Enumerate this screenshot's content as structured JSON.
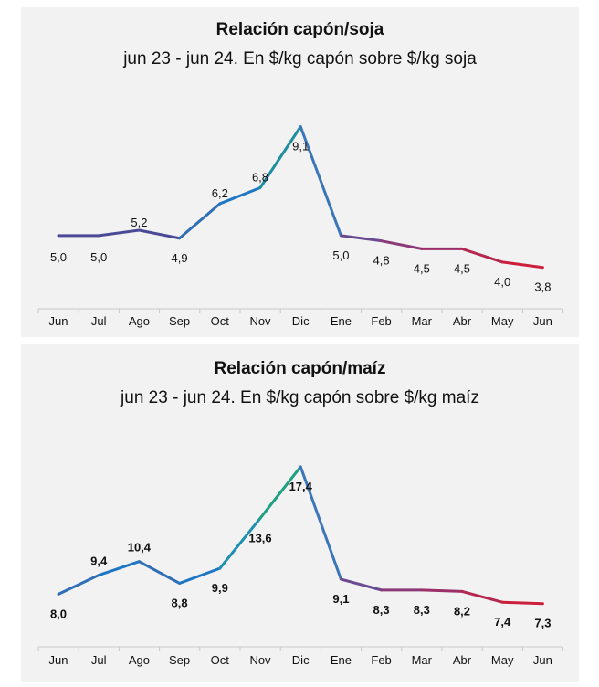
{
  "chart_data": [
    {
      "type": "line",
      "title": "Relación capón/soja",
      "subtitle": "jun 23 - jun 24. En $/kg capón sobre $/kg soja",
      "categories": [
        "Jun",
        "Jul",
        "Ago",
        "Sep",
        "Oct",
        "Nov",
        "Dic",
        "Ene",
        "Feb",
        "Mar",
        "Abr",
        "May",
        "Jun"
      ],
      "values": [
        5.0,
        5.0,
        5.2,
        4.9,
        6.2,
        6.8,
        9.1,
        5.0,
        4.8,
        4.5,
        4.5,
        4.0,
        3.8
      ],
      "data_labels": [
        "5,0",
        "5,0",
        "5,2",
        "4,9",
        "6,2",
        "6,8",
        "9,1",
        "5,0",
        "4,8",
        "4,5",
        "4,5",
        "4,0",
        "3,8"
      ],
      "ylim": [
        3.0,
        9.5
      ],
      "grid": false,
      "legend": "none",
      "colors": [
        "#4a4a96",
        "#4a4a96",
        "#4a4a96",
        "#4a4a96",
        "#2f6fb5",
        "#1f77c4",
        "#1f8fa0",
        "#3b76b8",
        "#6a4a92",
        "#8a3a7a",
        "#9a2f6a",
        "#b42850",
        "#cc1f3c"
      ]
    },
    {
      "type": "line",
      "title": "Relación capón/maíz",
      "subtitle": "jun 23 - jun 24. En $/kg capón sobre $/kg maíz",
      "categories": [
        "Jun",
        "Jul",
        "Ago",
        "Sep",
        "Oct",
        "Nov",
        "Dic",
        "Ene",
        "Feb",
        "Mar",
        "Abr",
        "May",
        "Jun"
      ],
      "values": [
        8.0,
        9.4,
        10.4,
        8.8,
        9.9,
        13.6,
        17.4,
        9.1,
        8.3,
        8.3,
        8.2,
        7.4,
        7.3
      ],
      "data_labels": [
        "8,0",
        "9,4",
        "10,4",
        "8,8",
        "9,9",
        "13,6",
        "17,4",
        "9,1",
        "8,3",
        "8,3",
        "8,2",
        "7,4",
        "7,3"
      ],
      "ylim": [
        6.0,
        18.0
      ],
      "grid": false,
      "legend": "none",
      "colors": [
        "#8a3a7a",
        "#2f6fb5",
        "#1f77c4",
        "#2f6fb5",
        "#1f77c4",
        "#1f8fb0",
        "#1fa080",
        "#3b76b8",
        "#6a4a92",
        "#8a3a7a",
        "#9a2f6a",
        "#b42850",
        "#cc1f3c"
      ]
    }
  ]
}
